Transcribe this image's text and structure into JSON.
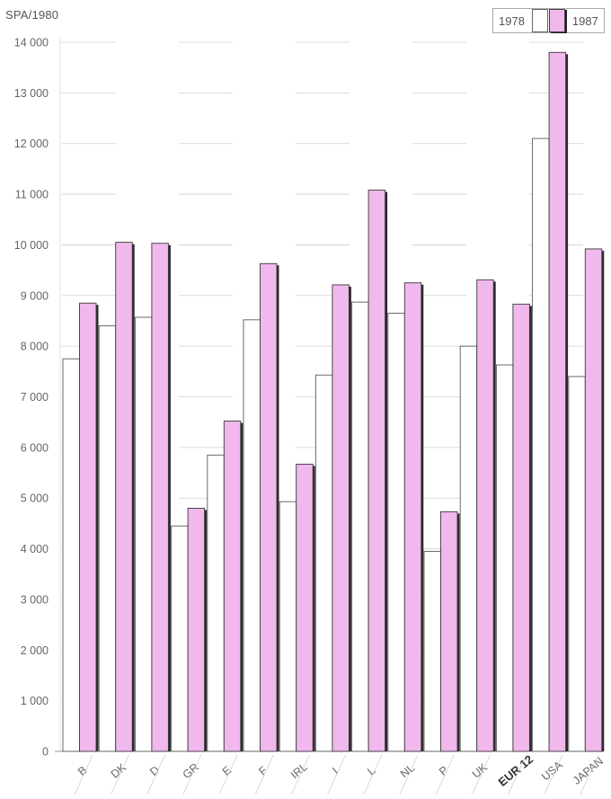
{
  "chart_data": {
    "type": "bar",
    "ylabel": "SPA/1980",
    "title": "",
    "xlabel": "",
    "ylim": [
      0,
      14000
    ],
    "yticks": [
      "0",
      "1 000",
      "2 000",
      "3 000",
      "4 000",
      "5 000",
      "6 000",
      "7 000",
      "8 000",
      "9 000",
      "10 000",
      "11 000",
      "12 000",
      "13 000",
      "14 000"
    ],
    "categories": [
      "B",
      "DK",
      "D",
      "GR",
      "E",
      "F",
      "IRL",
      "I",
      "L",
      "NL",
      "P",
      "UK",
      "EUR 12",
      "USA",
      "JAPAN"
    ],
    "bold_category": "EUR 12",
    "legend_position": "top-right",
    "grid": true,
    "series": [
      {
        "name": "1978",
        "color": "#ffffff",
        "values": [
          7750,
          8400,
          8570,
          4450,
          5850,
          8520,
          4930,
          7430,
          8870,
          8650,
          3950,
          8000,
          7630,
          12100,
          7400
        ]
      },
      {
        "name": "1987",
        "color": "#f0b8ec",
        "values": [
          8850,
          10050,
          10030,
          4800,
          6520,
          9630,
          5670,
          9210,
          11080,
          9250,
          4730,
          9310,
          8830,
          13800,
          9920
        ]
      }
    ]
  }
}
